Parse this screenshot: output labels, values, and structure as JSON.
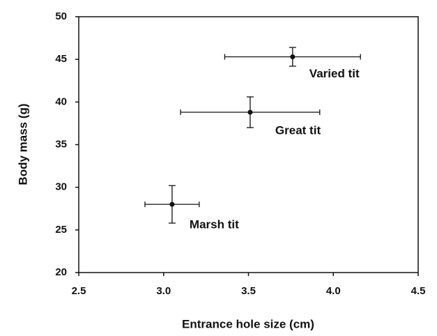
{
  "chart_data": {
    "type": "scatter",
    "xlabel": "Entrance hole size (cm)",
    "ylabel": "Body mass (g)",
    "labels": [
      "Marsh tit",
      "Great tit",
      "Varied tit"
    ],
    "x": [
      3.05,
      3.51,
      3.76
    ],
    "xerr": [
      0.16,
      0.41,
      0.4
    ],
    "values": [
      28,
      38.8,
      45.3
    ],
    "yerr": [
      2.2,
      1.8,
      1.1
    ],
    "color": "#111111",
    "xlim": [
      2.5,
      4.5
    ],
    "xticks": [
      2.5,
      {
        "value": 3,
        "label": "3.0"
      },
      3.5,
      {
        "value": 4,
        "label": "4.0"
      },
      4.5
    ],
    "ylim": [
      20,
      50
    ],
    "yticks": [
      20,
      25,
      30,
      35,
      40,
      45,
      50
    ]
  }
}
